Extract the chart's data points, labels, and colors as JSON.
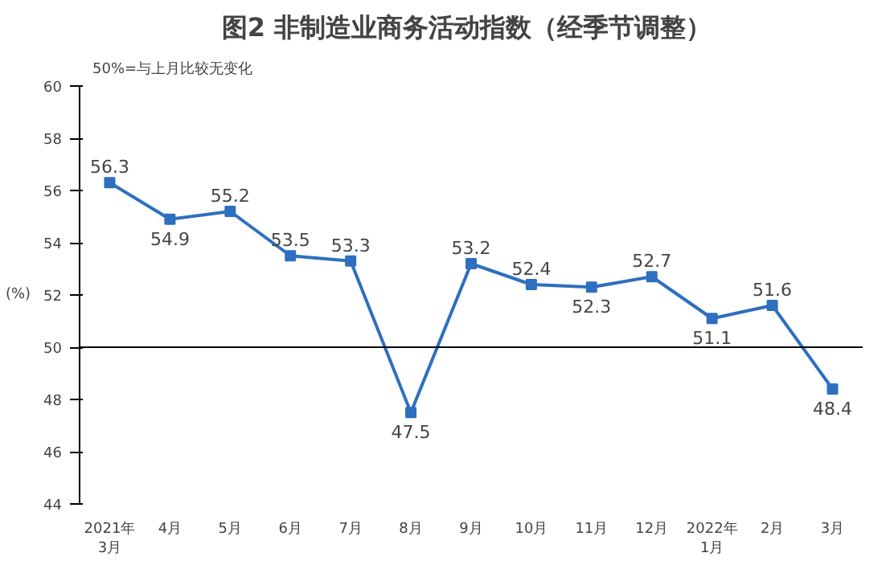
{
  "chart_data": {
    "type": "line",
    "title": "图2  非制造业商务活动指数（经季节调整）",
    "ylabel": "(%)",
    "annotations": [
      "50%=与上月比较无变化"
    ],
    "categories": [
      "2021年\n3月",
      "4月",
      "5月",
      "6月",
      "7月",
      "8月",
      "9月",
      "10月",
      "11月",
      "12月",
      "2022年\n1月",
      "2月",
      "3月"
    ],
    "series": [
      {
        "color": "#2e6fc0",
        "values": [
          56.3,
          54.9,
          55.2,
          53.5,
          53.3,
          47.5,
          53.2,
          52.4,
          52.3,
          52.7,
          51.1,
          51.6,
          48.4
        ]
      }
    ],
    "ylim": [
      44,
      60
    ],
    "yticks": [
      44,
      46,
      48,
      50,
      52,
      54,
      56,
      58,
      60
    ],
    "ref_lines": [
      {
        "axis": "y",
        "value": 50,
        "color": "#000000"
      }
    ],
    "data_labels": true,
    "grid": false,
    "marker": "square",
    "line_style": "solid"
  }
}
